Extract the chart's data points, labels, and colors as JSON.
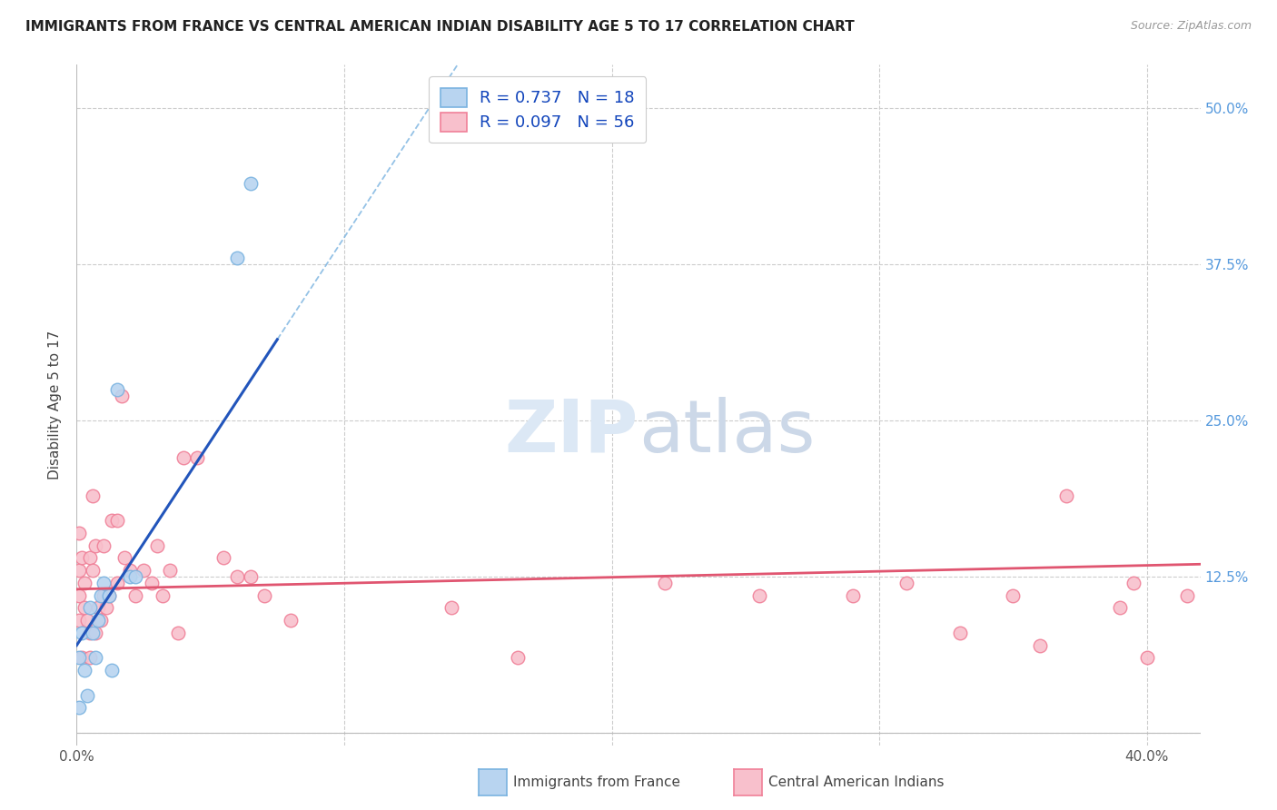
{
  "title": "IMMIGRANTS FROM FRANCE VS CENTRAL AMERICAN INDIAN DISABILITY AGE 5 TO 17 CORRELATION CHART",
  "source": "Source: ZipAtlas.com",
  "ylabel": "Disability Age 5 to 17",
  "x_ticks": [
    0.0,
    0.1,
    0.2,
    0.3,
    0.4
  ],
  "x_tick_labels": [
    "0.0%",
    "",
    "",
    "",
    "40.0%"
  ],
  "y_ticks": [
    0.0,
    0.125,
    0.25,
    0.375,
    0.5
  ],
  "y_tick_labels": [
    "",
    "12.5%",
    "25.0%",
    "37.5%",
    "50.0%"
  ],
  "x_min": 0.0,
  "x_max": 0.42,
  "y_min": -0.01,
  "y_max": 0.535,
  "france_color": "#7ab3e0",
  "france_fill": "#b8d4f0",
  "cai_color": "#f08098",
  "cai_fill": "#f8c0cc",
  "trendline_france_color": "#2255bb",
  "trendline_cai_color": "#e05570",
  "france_x": [
    0.001,
    0.001,
    0.002,
    0.003,
    0.004,
    0.005,
    0.006,
    0.007,
    0.008,
    0.009,
    0.01,
    0.012,
    0.013,
    0.015,
    0.02,
    0.022,
    0.06,
    0.065
  ],
  "france_y": [
    0.02,
    0.06,
    0.08,
    0.05,
    0.03,
    0.1,
    0.08,
    0.06,
    0.09,
    0.11,
    0.12,
    0.11,
    0.05,
    0.275,
    0.125,
    0.125,
    0.38,
    0.44
  ],
  "cai_x": [
    0.001,
    0.001,
    0.001,
    0.001,
    0.002,
    0.002,
    0.003,
    0.003,
    0.004,
    0.005,
    0.005,
    0.005,
    0.006,
    0.006,
    0.007,
    0.007,
    0.008,
    0.009,
    0.01,
    0.01,
    0.011,
    0.012,
    0.013,
    0.015,
    0.015,
    0.017,
    0.018,
    0.02,
    0.022,
    0.025,
    0.028,
    0.03,
    0.032,
    0.035,
    0.038,
    0.04,
    0.045,
    0.055,
    0.06,
    0.065,
    0.07,
    0.08,
    0.14,
    0.165,
    0.22,
    0.255,
    0.29,
    0.31,
    0.33,
    0.35,
    0.36,
    0.37,
    0.39,
    0.395,
    0.4,
    0.415
  ],
  "cai_y": [
    0.09,
    0.11,
    0.13,
    0.16,
    0.06,
    0.14,
    0.1,
    0.12,
    0.09,
    0.06,
    0.08,
    0.14,
    0.19,
    0.13,
    0.08,
    0.15,
    0.1,
    0.09,
    0.11,
    0.15,
    0.1,
    0.11,
    0.17,
    0.12,
    0.17,
    0.27,
    0.14,
    0.13,
    0.11,
    0.13,
    0.12,
    0.15,
    0.11,
    0.13,
    0.08,
    0.22,
    0.22,
    0.14,
    0.125,
    0.125,
    0.11,
    0.09,
    0.1,
    0.06,
    0.12,
    0.11,
    0.11,
    0.12,
    0.08,
    0.11,
    0.07,
    0.19,
    0.1,
    0.12,
    0.06,
    0.11
  ],
  "legend_france_label": "R = 0.737   N = 18",
  "legend_cai_label": "R = 0.097   N = 56",
  "france_trend_x0": 0.0,
  "france_trend_y0": 0.07,
  "france_trend_x1": 0.075,
  "france_trend_y1": 0.315,
  "cai_trend_x0": 0.0,
  "cai_trend_y0": 0.115,
  "cai_trend_x1": 0.42,
  "cai_trend_y1": 0.135
}
